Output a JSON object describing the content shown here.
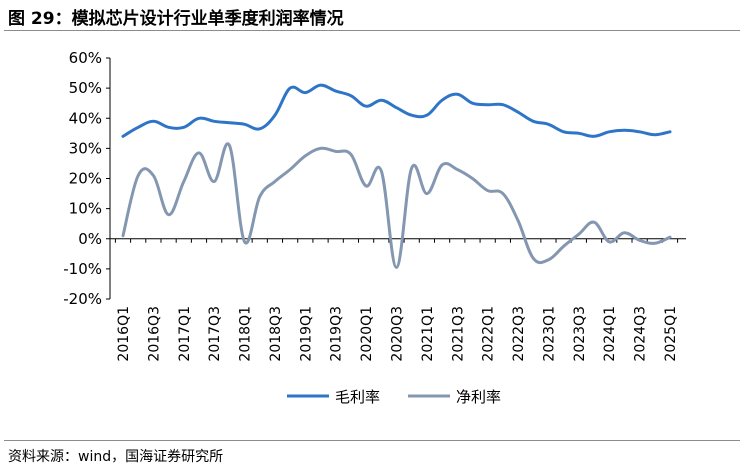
{
  "figure_title": "图 29：模拟芯片设计行业单季度利润率情况",
  "source": "资料来源：wind，国海证券研究所",
  "chart_data": {
    "type": "line",
    "title": "",
    "xlabel": "",
    "ylabel": "",
    "ylim": [
      -20,
      60
    ],
    "y_ticks": [
      -20,
      -10,
      0,
      10,
      20,
      30,
      40,
      50,
      60
    ],
    "y_tick_labels": [
      "-20%",
      "-10%",
      "0%",
      "10%",
      "20%",
      "30%",
      "40%",
      "50%",
      "60%"
    ],
    "categories": [
      "2016Q1",
      "2016Q2",
      "2016Q3",
      "2016Q4",
      "2017Q1",
      "2017Q2",
      "2017Q3",
      "2017Q4",
      "2018Q1",
      "2018Q2",
      "2018Q3",
      "2018Q4",
      "2019Q1",
      "2019Q2",
      "2019Q3",
      "2019Q4",
      "2020Q1",
      "2020Q2",
      "2020Q3",
      "2020Q4",
      "2021Q1",
      "2021Q2",
      "2021Q3",
      "2021Q4",
      "2022Q1",
      "2022Q2",
      "2022Q3",
      "2022Q4",
      "2023Q1",
      "2023Q2",
      "2023Q3",
      "2023Q4",
      "2024Q1",
      "2024Q2",
      "2024Q3",
      "2024Q4",
      "2025Q1"
    ],
    "x_tick_labels": [
      "2016Q1",
      "2016Q3",
      "2017Q1",
      "2017Q3",
      "2018Q1",
      "2018Q3",
      "2019Q1",
      "2019Q3",
      "2020Q1",
      "2020Q3",
      "2021Q1",
      "2021Q3",
      "2022Q1",
      "2022Q3",
      "2023Q1",
      "2023Q3",
      "2024Q1",
      "2024Q3",
      "2025Q1"
    ],
    "legend_position": "bottom",
    "series": [
      {
        "name": "毛利率",
        "color": "#2e75c8",
        "values": [
          34,
          37,
          39,
          37,
          37,
          40,
          39,
          38.5,
          38,
          36.5,
          41,
          50,
          48.5,
          51,
          49,
          47.5,
          44,
          46,
          43.5,
          41,
          41,
          46,
          48,
          45,
          44.5,
          44.5,
          42,
          39,
          38,
          35.5,
          35,
          34,
          35.5,
          36,
          35.5,
          34.5,
          35.5
        ]
      },
      {
        "name": "净利率",
        "color": "#8497b0",
        "values": [
          1,
          21,
          21,
          8,
          19,
          28.5,
          19,
          31,
          -1,
          14,
          19,
          23,
          27.5,
          30,
          29,
          28,
          17.5,
          22.5,
          -9.5,
          23.5,
          15,
          24.5,
          23,
          20,
          16,
          15,
          6,
          -6.5,
          -7,
          -2.5,
          1.5,
          5.5,
          -1,
          2,
          -0.5,
          -1.5,
          0.5
        ]
      }
    ]
  }
}
